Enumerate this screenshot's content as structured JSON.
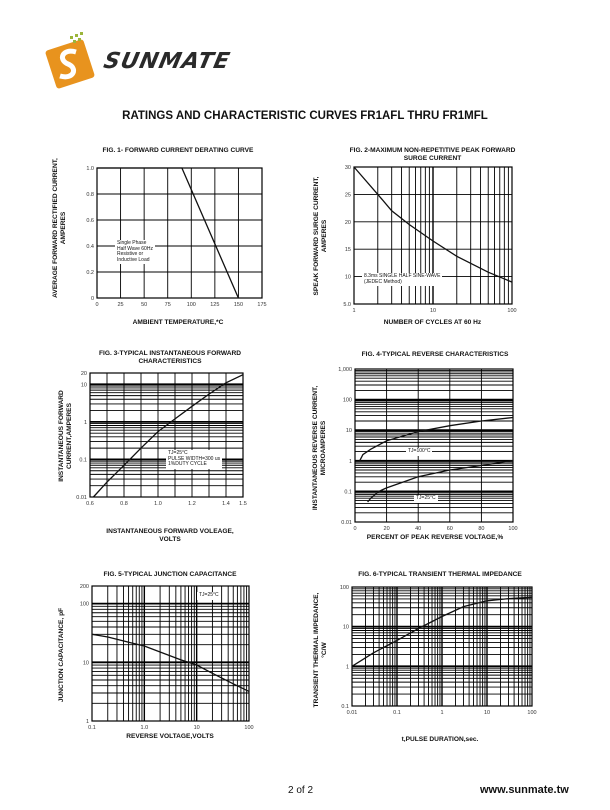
{
  "brand": {
    "name": "SUNMATE",
    "logo_colors": {
      "orange": "#E8931E",
      "dark": "#2a2a2a",
      "green": "#9BB53A"
    }
  },
  "heading": "RATINGS AND CHARACTERISTIC CURVES FR1AFL THRU FR1MFL",
  "footer": {
    "page": "2 of 2",
    "url": "www.sunmate.tw"
  },
  "chart_data": [
    {
      "type": "line",
      "title": "FIG. 1- FORWARD CURRENT DERATING CURVE",
      "xlabel": "AMBIENT TEMPERATURE,*C",
      "ylabel": [
        "AVERAGE FORWARD RECTIFIED CURRENT,",
        "AMPERES"
      ],
      "xscale": "linear",
      "yscale": "linear",
      "xlim": [
        0,
        175
      ],
      "ylim": [
        0,
        1.0
      ],
      "grid": true,
      "xticks": [
        "0",
        "25",
        "50",
        "75",
        "100",
        "125",
        "150",
        "175"
      ],
      "xtick_values": [
        0,
        25,
        50,
        75,
        100,
        125,
        150,
        175
      ],
      "yticks": [
        "0",
        "0.2",
        "0.4",
        "0.6",
        "0.8",
        "1.0"
      ],
      "ytick_values": [
        0,
        0.2,
        0.4,
        0.6,
        0.8,
        1.0
      ],
      "series": [
        {
          "x": [
            0,
            90,
            150
          ],
          "y": [
            1.0,
            1.0,
            0
          ]
        }
      ],
      "annotations": [
        "Single Phase",
        "Half Wave 60Hz",
        "Resistive or",
        "Inductive Load"
      ]
    },
    {
      "type": "line",
      "title": [
        "FIG. 2-MAXIMUM NON-REPETITIVE PEAK FORWARD",
        "SURGE CURRENT"
      ],
      "xlabel": "NUMBER OF CYCLES AT 60 Hz",
      "ylabel": [
        "SPEAK  FORWARD SURGE CURRENT,",
        "AMPERES"
      ],
      "xscale": "log",
      "yscale": "linear",
      "xlim": [
        1,
        100
      ],
      "ylim": [
        5,
        30
      ],
      "grid": true,
      "xticks": [
        "1",
        "10",
        "100"
      ],
      "xtick_values": [
        1,
        10,
        100
      ],
      "yticks": [
        "5.0",
        "10",
        "15",
        "20",
        "25",
        "30"
      ],
      "ytick_values": [
        5,
        10,
        15,
        20,
        25,
        30
      ],
      "series": [
        {
          "x": [
            1,
            2,
            3,
            5,
            10,
            20,
            50,
            100
          ],
          "y": [
            30,
            25,
            22,
            19.5,
            16.5,
            13.7,
            10.8,
            9
          ]
        }
      ],
      "annotations": [
        "8.3ms SINGLE HALF SINE-WAVE",
        "(JEDEC Method)"
      ]
    },
    {
      "type": "line",
      "title": [
        "FIG. 3-TYPICAL INSTANTANEOUS FORWARD",
        "CHARACTERISTICS"
      ],
      "xlabel": [
        "INSTANTANEOUS FORWARD VOLEAGE,",
        "VOLTS"
      ],
      "ylabel": [
        "INSTANTANEOUS FORWARD",
        "CURRENT,AMPERES"
      ],
      "xscale": "linear",
      "yscale": "log",
      "xlim": [
        0.6,
        1.5
      ],
      "ylim": [
        0.01,
        20
      ],
      "grid": true,
      "xticks": [
        "0.6",
        "0.8",
        "1.0",
        "1.2",
        "1.4",
        "1.5"
      ],
      "xtick_values": [
        0.6,
        0.8,
        1.0,
        1.2,
        1.4,
        1.5
      ],
      "yticks": [
        "0.01",
        "0.1",
        "1",
        "10",
        "20"
      ],
      "ytick_values": [
        0.01,
        0.1,
        1,
        10,
        20
      ],
      "series": [
        {
          "x": [
            0.62,
            0.7,
            0.8,
            0.9,
            1.0,
            1.1,
            1.2,
            1.3,
            1.4,
            1.5
          ],
          "y": [
            0.01,
            0.025,
            0.07,
            0.2,
            0.55,
            1.2,
            2.6,
            5.5,
            11,
            18
          ]
        }
      ],
      "annotations": [
        "TJ=25°C",
        "PULSE WIDTH=300 us",
        "1%DUTY CYCLE"
      ]
    },
    {
      "type": "line",
      "title": "FIG. 4-TYPICAL REVERSE CHARACTERISTICS",
      "xlabel": "PERCENT OF PEAK REVERSE VOLTAGE,%",
      "ylabel": [
        "INSTANTANEOUS REVERSE CURRENT,",
        "MICROAMPERES"
      ],
      "xscale": "linear",
      "yscale": "log",
      "xlim": [
        0,
        100
      ],
      "ylim": [
        0.01,
        1000
      ],
      "grid": true,
      "xticks": [
        "0",
        "20",
        "40",
        "60",
        "80",
        "100"
      ],
      "xtick_values": [
        0,
        20,
        40,
        60,
        80,
        100
      ],
      "yticks": [
        "0.01",
        "0.1",
        "1",
        "10",
        "100",
        "1,000"
      ],
      "ytick_values": [
        0.01,
        0.1,
        1,
        10,
        100,
        1000
      ],
      "series": [
        {
          "name": "TJ=100°C",
          "x": [
            3,
            5,
            10,
            20,
            40,
            60,
            80,
            100
          ],
          "y": [
            1,
            1.6,
            2.4,
            4.5,
            9,
            14,
            20,
            26
          ]
        },
        {
          "name": "TJ=25°C",
          "x": [
            8,
            10,
            15,
            20,
            40,
            60,
            80,
            100
          ],
          "y": [
            0.045,
            0.06,
            0.1,
            0.13,
            0.3,
            0.5,
            0.7,
            1.0
          ]
        }
      ]
    },
    {
      "type": "line",
      "title": "FIG. 5-TYPICAL JUNCTION CAPACITANCE",
      "xlabel": "REVERSE VOLTAGE,VOLTS",
      "ylabel": "JUNCTION CAPACITANCE, pF",
      "xscale": "log",
      "yscale": "log",
      "xlim": [
        0.1,
        100
      ],
      "ylim": [
        1,
        200
      ],
      "grid": true,
      "xticks": [
        "0.1",
        "1.0",
        "10",
        "100"
      ],
      "xtick_values": [
        0.1,
        1,
        10,
        100
      ],
      "yticks": [
        "1",
        "10",
        "100",
        "200"
      ],
      "ytick_values": [
        1,
        10,
        100,
        200
      ],
      "series": [
        {
          "x": [
            0.1,
            0.2,
            0.5,
            1,
            2,
            5,
            10,
            20,
            50,
            100
          ],
          "y": [
            30,
            27,
            22,
            19,
            15,
            11,
            9,
            6.5,
            4.3,
            3.2
          ]
        }
      ],
      "annotations": [
        "TJ=25°C"
      ]
    },
    {
      "type": "line",
      "title": "FIG. 6-TYPICAL TRANSIENT THERMAL IMPEDANCE",
      "xlabel": "t,PULSE DURATION,sec.",
      "ylabel": [
        "TRANSIENT THERMAL IMPEDANCE,",
        "°C/W"
      ],
      "xscale": "log",
      "yscale": "log",
      "xlim": [
        0.01,
        100
      ],
      "ylim": [
        0.1,
        100
      ],
      "grid": true,
      "xticks": [
        "0.01",
        "0.1",
        "1",
        "10",
        "100"
      ],
      "xtick_values": [
        0.01,
        0.1,
        1,
        10,
        100
      ],
      "yticks": [
        "0.1",
        "1",
        "10",
        "100"
      ],
      "ytick_values": [
        0.1,
        1,
        10,
        100
      ],
      "series": [
        {
          "x": [
            0.01,
            0.03,
            0.1,
            0.3,
            1,
            3,
            10,
            30,
            100
          ],
          "y": [
            1,
            2.2,
            4.5,
            9,
            18,
            32,
            45,
            51,
            55
          ]
        }
      ]
    }
  ]
}
